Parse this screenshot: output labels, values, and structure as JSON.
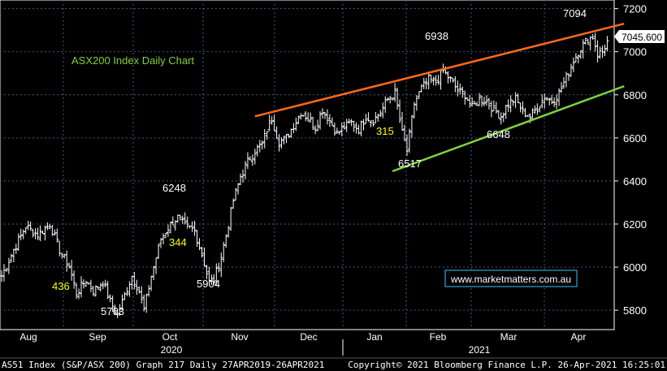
{
  "window": {
    "footer_left": "AS51 Index (S&P/ASX 200) Graph 217  Daily 27APR2019-26APR2021",
    "footer_right": "Copyright© 2021 Bloomberg Finance L.P.      26-Apr-2021 16:25:01"
  },
  "chart_data": {
    "type": "ohlc-bar",
    "title": "ASX200 Index Daily Chart",
    "watermark": "www.marketmatters.com.au",
    "y_axis": {
      "ylim": [
        5710,
        7240
      ],
      "ticks": [
        5800,
        6000,
        6200,
        6400,
        6600,
        6800,
        7000,
        7200
      ],
      "side": "right"
    },
    "x_axis": {
      "months": [
        "Aug",
        "Sep",
        "Oct",
        "Nov",
        "Dec",
        "Jan",
        "Feb",
        "Mar",
        "Apr"
      ],
      "years": [
        "2020",
        "2021"
      ]
    },
    "last_price": "7045.600",
    "annotations": [
      {
        "text": "436",
        "color": "#ffff00"
      },
      {
        "text": "5763",
        "color": "#ffffff"
      },
      {
        "text": "6248",
        "color": "#ffffff"
      },
      {
        "text": "344",
        "color": "#ffff00"
      },
      {
        "text": "5904",
        "color": "#ffffff"
      },
      {
        "text": "315",
        "color": "#ffff00"
      },
      {
        "text": "6517",
        "color": "#ffffff"
      },
      {
        "text": "6938",
        "color": "#ffffff"
      },
      {
        "text": "6648",
        "color": "#ffffff"
      },
      {
        "text": "7094",
        "color": "#ffffff"
      }
    ],
    "trendlines": [
      {
        "name": "resistance",
        "color": "#ff6a1a",
        "from": {
          "day": 105,
          "value": 6700
        },
        "to": {
          "day": 258,
          "value": 7130
        }
      },
      {
        "name": "support",
        "color": "#7fd13b",
        "from": {
          "day": 162,
          "value": 6445
        },
        "to": {
          "day": 258,
          "value": 6840
        }
      }
    ],
    "anchors": [
      {
        "day": 0,
        "value": 5960
      },
      {
        "day": 5,
        "value": 6080
      },
      {
        "day": 10,
        "value": 6190
      },
      {
        "day": 15,
        "value": 6150
      },
      {
        "day": 20,
        "value": 6200
      },
      {
        "day": 24,
        "value": 6080
      },
      {
        "day": 28,
        "value": 6000
      },
      {
        "day": 31,
        "value": 5880
      },
      {
        "day": 35,
        "value": 5940
      },
      {
        "day": 38,
        "value": 5890
      },
      {
        "day": 42,
        "value": 5930
      },
      {
        "day": 45,
        "value": 5840
      },
      {
        "day": 48,
        "value": 5780
      },
      {
        "day": 51,
        "value": 5870
      },
      {
        "day": 54,
        "value": 5960
      },
      {
        "day": 57,
        "value": 5890
      },
      {
        "day": 59,
        "value": 5800
      },
      {
        "day": 62,
        "value": 5960
      },
      {
        "day": 66,
        "value": 6130
      },
      {
        "day": 70,
        "value": 6200
      },
      {
        "day": 73,
        "value": 6230
      },
      {
        "day": 76,
        "value": 6190
      },
      {
        "day": 80,
        "value": 6170
      },
      {
        "day": 83,
        "value": 6060
      },
      {
        "day": 86,
        "value": 5930
      },
      {
        "day": 88,
        "value": 5940
      },
      {
        "day": 91,
        "value": 6050
      },
      {
        "day": 94,
        "value": 6200
      },
      {
        "day": 96,
        "value": 6310
      },
      {
        "day": 99,
        "value": 6420
      },
      {
        "day": 102,
        "value": 6490
      },
      {
        "day": 105,
        "value": 6540
      },
      {
        "day": 108,
        "value": 6570
      },
      {
        "day": 110,
        "value": 6640
      },
      {
        "day": 112,
        "value": 6690
      },
      {
        "day": 115,
        "value": 6580
      },
      {
        "day": 118,
        "value": 6600
      },
      {
        "day": 121,
        "value": 6660
      },
      {
        "day": 124,
        "value": 6720
      },
      {
        "day": 127,
        "value": 6690
      },
      {
        "day": 130,
        "value": 6650
      },
      {
        "day": 133,
        "value": 6730
      },
      {
        "day": 136,
        "value": 6680
      },
      {
        "day": 139,
        "value": 6620
      },
      {
        "day": 142,
        "value": 6650
      },
      {
        "day": 145,
        "value": 6670
      },
      {
        "day": 148,
        "value": 6640
      },
      {
        "day": 151,
        "value": 6700
      },
      {
        "day": 154,
        "value": 6680
      },
      {
        "day": 157,
        "value": 6720
      },
      {
        "day": 160,
        "value": 6780
      },
      {
        "day": 163,
        "value": 6810
      },
      {
        "day": 166,
        "value": 6620
      },
      {
        "day": 168,
        "value": 6540
      },
      {
        "day": 171,
        "value": 6760
      },
      {
        "day": 174,
        "value": 6830
      },
      {
        "day": 177,
        "value": 6870
      },
      {
        "day": 180,
        "value": 6860
      },
      {
        "day": 183,
        "value": 6910
      },
      {
        "day": 186,
        "value": 6870
      },
      {
        "day": 189,
        "value": 6820
      },
      {
        "day": 192,
        "value": 6800
      },
      {
        "day": 195,
        "value": 6740
      },
      {
        "day": 198,
        "value": 6780
      },
      {
        "day": 201,
        "value": 6770
      },
      {
        "day": 204,
        "value": 6730
      },
      {
        "day": 207,
        "value": 6700
      },
      {
        "day": 210,
        "value": 6760
      },
      {
        "day": 213,
        "value": 6780
      },
      {
        "day": 216,
        "value": 6720
      },
      {
        "day": 219,
        "value": 6700
      },
      {
        "day": 222,
        "value": 6740
      },
      {
        "day": 225,
        "value": 6790
      },
      {
        "day": 228,
        "value": 6770
      },
      {
        "day": 231,
        "value": 6810
      },
      {
        "day": 234,
        "value": 6880
      },
      {
        "day": 237,
        "value": 6960
      },
      {
        "day": 240,
        "value": 7020
      },
      {
        "day": 243,
        "value": 7060
      },
      {
        "day": 245,
        "value": 7070
      },
      {
        "day": 247,
        "value": 6990
      },
      {
        "day": 249,
        "value": 7000
      },
      {
        "day": 251,
        "value": 7045
      }
    ]
  }
}
